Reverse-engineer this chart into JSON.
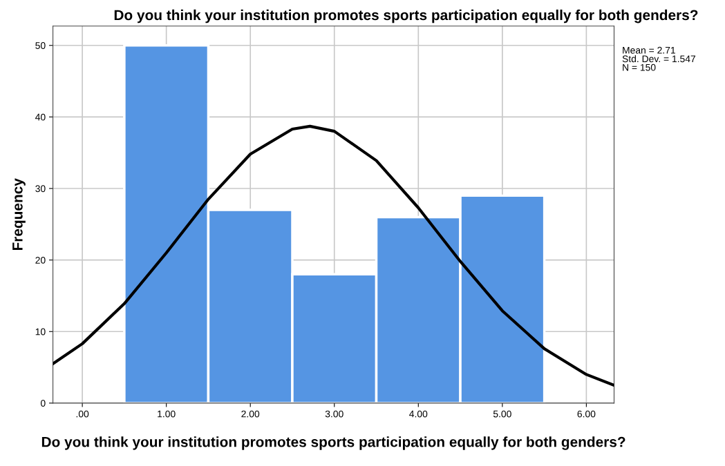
{
  "chart_data": {
    "type": "histogram",
    "title": "Do you think your institution promotes sports participation equally for both genders?",
    "xlabel": "Do you think your institution promotes sports participation equally for both genders?",
    "ylabel": "Frequency",
    "bins": [
      0.5,
      1.5,
      2.5,
      3.5,
      4.5,
      5.5
    ],
    "values": [
      50,
      27,
      18,
      26,
      29
    ],
    "color": "#5595e3",
    "series": [
      {
        "type": "line",
        "color": "#000000",
        "x": [
          -0.35,
          0,
          0.5,
          1,
          1.5,
          2,
          2.5,
          2.71,
          3,
          3.5,
          4,
          4.5,
          5,
          5.5,
          6,
          6.33
        ],
        "values": [
          5.5,
          8.3,
          13.9,
          21.0,
          28.5,
          34.8,
          38.3,
          38.7,
          38.0,
          33.9,
          27.3,
          19.8,
          12.9,
          7.6,
          4.0,
          2.5
        ]
      }
    ],
    "xlim": [
      -0.35,
      6.33
    ],
    "xticks": [
      {
        "value": 0,
        "label": ".00"
      },
      {
        "value": 1,
        "label": "1.00"
      },
      {
        "value": 2,
        "label": "2.00"
      },
      {
        "value": 3,
        "label": "3.00"
      },
      {
        "value": 4,
        "label": "4.00"
      },
      {
        "value": 5,
        "label": "5.00"
      },
      {
        "value": 6,
        "label": "6.00"
      }
    ],
    "ylim": [
      0,
      52.7
    ],
    "yticks": [
      0,
      10,
      20,
      30,
      40,
      50
    ],
    "grid": true,
    "annotations": [
      "Mean = 2.71\nStd. Dev. = 1.547\nN = 150"
    ]
  }
}
